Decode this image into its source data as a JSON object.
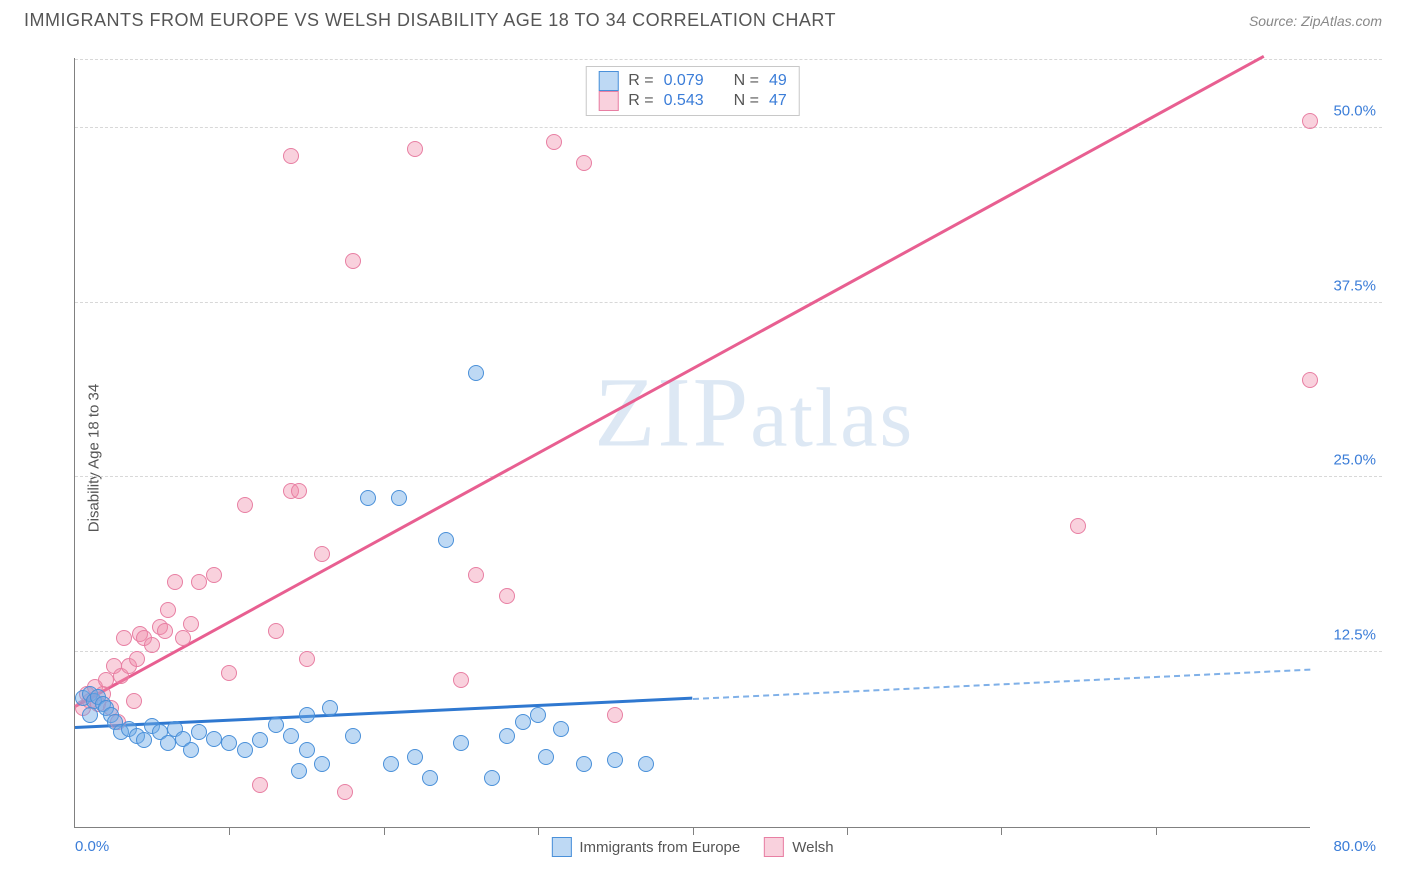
{
  "header": {
    "title": "IMMIGRANTS FROM EUROPE VS WELSH DISABILITY AGE 18 TO 34 CORRELATION CHART",
    "source_prefix": "Source: ",
    "source_name": "ZipAtlas.com"
  },
  "watermark": {
    "z": "Z",
    "i": "I",
    "p": "P",
    "rest": "atlas"
  },
  "chart": {
    "type": "scatter",
    "y_label": "Disability Age 18 to 34",
    "x_origin": "0.0%",
    "x_end": "80.0%",
    "xlim": [
      0,
      80
    ],
    "ylim": [
      0,
      55
    ],
    "y_ticks": [
      {
        "v": 12.5,
        "label": "12.5%"
      },
      {
        "v": 25.0,
        "label": "25.0%"
      },
      {
        "v": 37.5,
        "label": "37.5%"
      },
      {
        "v": 50.0,
        "label": "50.0%"
      }
    ],
    "x_tick_step": 10,
    "background_color": "#ffffff",
    "grid_color": "#d8d8d8",
    "colors": {
      "blue_fill": "rgba(110,170,230,0.45)",
      "blue_stroke": "#4a90d9",
      "blue_line": "#2f78d0",
      "pink_fill": "rgba(240,140,170,0.40)",
      "pink_stroke": "#e87fa3",
      "pink_line": "#e85f91",
      "tick_label": "#3b7dd8",
      "axis": "#808080"
    },
    "legend_top": {
      "rows": [
        {
          "swatch": "blue",
          "r_label": "R =",
          "r_value": "0.079",
          "n_label": "N =",
          "n_value": "49"
        },
        {
          "swatch": "pink",
          "r_label": "R =",
          "r_value": "0.543",
          "n_label": "N =",
          "n_value": "47"
        }
      ]
    },
    "legend_bottom": {
      "items": [
        {
          "swatch": "blue",
          "label": "Immigrants from Europe"
        },
        {
          "swatch": "pink",
          "label": "Welsh"
        }
      ]
    },
    "trend_lines": {
      "blue": {
        "x1": 0,
        "y1": 7.0,
        "x2_solid": 40,
        "x2": 80,
        "y2": 11.2
      },
      "pink": {
        "x1": 0,
        "y1": 8.5,
        "x2": 77,
        "y2": 55.0
      }
    },
    "series": {
      "blue": [
        [
          0.5,
          9.2
        ],
        [
          1.0,
          9.5
        ],
        [
          1.2,
          9.0
        ],
        [
          1.0,
          8.0
        ],
        [
          1.5,
          9.3
        ],
        [
          1.8,
          8.8
        ],
        [
          2.0,
          8.5
        ],
        [
          2.3,
          8.0
        ],
        [
          2.6,
          7.5
        ],
        [
          3.0,
          6.8
        ],
        [
          3.5,
          7.0
        ],
        [
          4.0,
          6.5
        ],
        [
          4.5,
          6.2
        ],
        [
          5.0,
          7.2
        ],
        [
          5.5,
          6.8
        ],
        [
          6.0,
          6.0
        ],
        [
          6.5,
          7.0
        ],
        [
          7.0,
          6.3
        ],
        [
          7.5,
          5.5
        ],
        [
          8.0,
          6.8
        ],
        [
          9.0,
          6.3
        ],
        [
          10.0,
          6.0
        ],
        [
          11.0,
          5.5
        ],
        [
          12.0,
          6.2
        ],
        [
          13.0,
          7.3
        ],
        [
          14.0,
          6.5
        ],
        [
          14.5,
          4.0
        ],
        [
          15.0,
          5.5
        ],
        [
          16.0,
          4.5
        ],
        [
          15.0,
          8.0
        ],
        [
          16.5,
          8.5
        ],
        [
          18.0,
          6.5
        ],
        [
          19.0,
          23.5
        ],
        [
          20.5,
          4.5
        ],
        [
          21.0,
          23.5
        ],
        [
          22.0,
          5.0
        ],
        [
          23.0,
          3.5
        ],
        [
          24.0,
          20.5
        ],
        [
          25.0,
          6.0
        ],
        [
          26.0,
          32.5
        ],
        [
          27.0,
          3.5
        ],
        [
          28.0,
          6.5
        ],
        [
          29.0,
          7.5
        ],
        [
          30.5,
          5.0
        ],
        [
          33.0,
          4.5
        ],
        [
          35.0,
          4.8
        ],
        [
          37.0,
          4.5
        ],
        [
          30.0,
          8.0
        ],
        [
          31.5,
          7.0
        ]
      ],
      "pink": [
        [
          0.5,
          8.5
        ],
        [
          1.0,
          9.0
        ],
        [
          0.8,
          9.5
        ],
        [
          1.5,
          8.8
        ],
        [
          1.3,
          10.0
        ],
        [
          1.8,
          9.5
        ],
        [
          2.0,
          10.5
        ],
        [
          2.5,
          11.5
        ],
        [
          2.3,
          8.5
        ],
        [
          3.0,
          10.8
        ],
        [
          3.5,
          11.5
        ],
        [
          3.2,
          13.5
        ],
        [
          4.0,
          12.0
        ],
        [
          4.2,
          13.8
        ],
        [
          4.5,
          13.5
        ],
        [
          5.0,
          13.0
        ],
        [
          5.5,
          14.3
        ],
        [
          5.8,
          14.0
        ],
        [
          6.0,
          15.5
        ],
        [
          6.5,
          17.5
        ],
        [
          7.0,
          13.5
        ],
        [
          8.0,
          17.5
        ],
        [
          9.0,
          18.0
        ],
        [
          10.0,
          11.0
        ],
        [
          11.0,
          23.0
        ],
        [
          12.0,
          3.0
        ],
        [
          13.0,
          14.0
        ],
        [
          14.0,
          24.0
        ],
        [
          14.5,
          24.0
        ],
        [
          15.0,
          12.0
        ],
        [
          16.0,
          19.5
        ],
        [
          17.5,
          2.5
        ],
        [
          18.0,
          40.5
        ],
        [
          14.0,
          48.0
        ],
        [
          22.0,
          48.5
        ],
        [
          25.0,
          10.5
        ],
        [
          26.0,
          18.0
        ],
        [
          28.0,
          16.5
        ],
        [
          31.0,
          49.0
        ],
        [
          33.0,
          47.5
        ],
        [
          35.0,
          8.0
        ],
        [
          65.0,
          21.5
        ],
        [
          80.0,
          50.5
        ],
        [
          80.0,
          32.0
        ],
        [
          7.5,
          14.5
        ],
        [
          3.8,
          9.0
        ],
        [
          2.8,
          7.5
        ]
      ]
    }
  }
}
